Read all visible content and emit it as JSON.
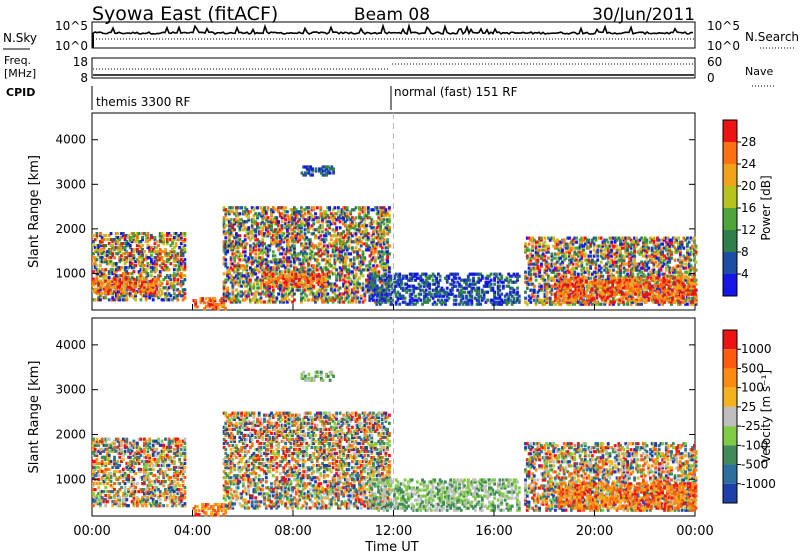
{
  "header": {
    "title": "Syowa East (fitACF)",
    "beam": "Beam 08",
    "date": "30/Jun/2011"
  },
  "panels": {
    "nsky": {
      "left_label": "N.Sky",
      "left_ticks": [
        "10^5",
        "10^0"
      ],
      "right_ticks": [
        "10^5",
        "10^0"
      ],
      "right_label": "N.Search"
    },
    "freq": {
      "left_label_1": "Freq.",
      "left_label_2": "[MHz]",
      "left_ticks": [
        "18",
        "8"
      ],
      "right_ticks": [
        "60",
        "0"
      ],
      "right_label": "Nave"
    },
    "cpid": {
      "label": "CPID",
      "modes": [
        "themis 3300 RF",
        "normal (fast) 151 RF"
      ]
    }
  },
  "chart_data": [
    {
      "type": "heatmap",
      "parameter": "Power",
      "ylabel": "Slant Range [km]",
      "xlabel": "",
      "ylim": [
        180,
        4600
      ],
      "yticks": [
        "1000",
        "2000",
        "3000",
        "4000"
      ],
      "xlim_hours": [
        0,
        24
      ],
      "colorbar": {
        "label": "Power [dB]",
        "ticks": [
          "4",
          "8",
          "12",
          "16",
          "20",
          "24",
          "28"
        ],
        "colors": [
          "#1515e8",
          "#1c4ea6",
          "#2f7f4a",
          "#4fa43a",
          "#b8c21c",
          "#f0a21a",
          "#ff7010",
          "#ee1212"
        ]
      },
      "echo_regions": [
        {
          "t": [
            0.0,
            3.7
          ],
          "range": [
            400,
            1900
          ],
          "level": "mixed"
        },
        {
          "t": [
            0.0,
            2.6
          ],
          "range": [
            550,
            900
          ],
          "level": "high"
        },
        {
          "t": [
            4.0,
            5.3
          ],
          "range": [
            200,
            450
          ],
          "level": "high"
        },
        {
          "t": [
            5.2,
            11.8
          ],
          "range": [
            350,
            2500
          ],
          "level": "mixed"
        },
        {
          "t": [
            6.8,
            9.3
          ],
          "range": [
            700,
            1000
          ],
          "level": "high"
        },
        {
          "t": [
            8.3,
            9.6
          ],
          "range": [
            3200,
            3400
          ],
          "level": "low"
        },
        {
          "t": [
            11.0,
            17.0
          ],
          "range": [
            300,
            1000
          ],
          "level": "low"
        },
        {
          "t": [
            17.2,
            24.0
          ],
          "range": [
            300,
            1800
          ],
          "level": "mixed"
        },
        {
          "t": [
            18.5,
            24.0
          ],
          "range": [
            350,
            900
          ],
          "level": "high"
        }
      ]
    },
    {
      "type": "heatmap",
      "parameter": "Velocity",
      "ylabel": "Slant Range [km]",
      "xlabel": "Time UT",
      "ylim": [
        180,
        4600
      ],
      "yticks": [
        "1000",
        "2000",
        "3000",
        "4000"
      ],
      "xlim_hours": [
        0,
        24
      ],
      "xticks": [
        "00:00",
        "04:00",
        "08:00",
        "12:00",
        "16:00",
        "20:00",
        "00:00"
      ],
      "colorbar": {
        "label": "Velocity [m s⁻¹]",
        "ticks": [
          "1000",
          "500",
          "100",
          "25",
          "-25",
          "-100",
          "-500",
          "-1000"
        ],
        "colors": [
          "#1c3fa8",
          "#2c6e9e",
          "#3f8a57",
          "#7fcc44",
          "#bebebe",
          "#f4b21c",
          "#ff8a10",
          "#ff5a10",
          "#ee1212"
        ]
      },
      "echo_regions": [
        {
          "t": [
            0.0,
            3.7
          ],
          "range": [
            400,
            1900
          ],
          "level": "mixed"
        },
        {
          "t": [
            4.0,
            5.3
          ],
          "range": [
            200,
            450
          ],
          "level": "high"
        },
        {
          "t": [
            5.2,
            11.8
          ],
          "range": [
            350,
            2500
          ],
          "level": "mixed"
        },
        {
          "t": [
            8.3,
            9.6
          ],
          "range": [
            3200,
            3400
          ],
          "level": "low"
        },
        {
          "t": [
            11.0,
            17.0
          ],
          "range": [
            300,
            1000
          ],
          "level": "low"
        },
        {
          "t": [
            17.2,
            24.0
          ],
          "range": [
            300,
            1800
          ],
          "level": "mixed"
        },
        {
          "t": [
            18.5,
            24.0
          ],
          "range": [
            350,
            900
          ],
          "level": "high"
        }
      ]
    }
  ]
}
